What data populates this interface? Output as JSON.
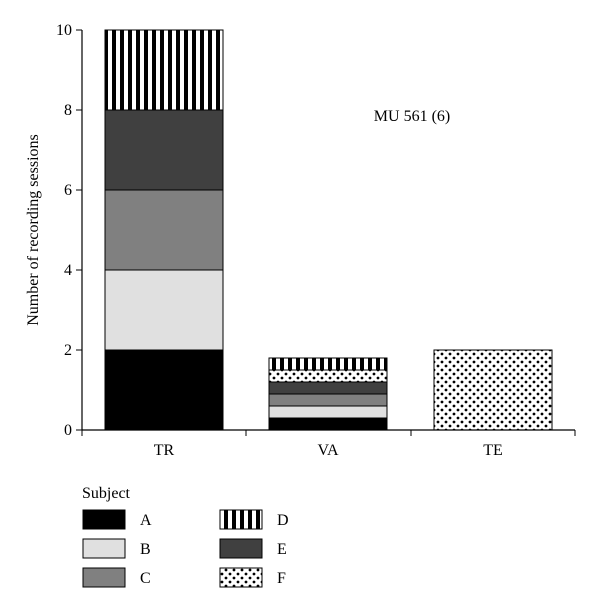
{
  "chart_data": {
    "type": "bar",
    "stacked": true,
    "title": "",
    "annotation": "MU 561 (6)",
    "xlabel": "",
    "ylabel": "Number of recording sessions",
    "ylim": [
      0,
      10
    ],
    "yticks": [
      0,
      2,
      4,
      6,
      8,
      10
    ],
    "categories": [
      "TR",
      "VA",
      "TE"
    ],
    "series": [
      {
        "name": "A",
        "fill": "solid",
        "color": "#000000",
        "values": [
          2,
          0.3,
          0
        ]
      },
      {
        "name": "B",
        "fill": "solid",
        "color": "#e0e0e0",
        "values": [
          2,
          0.3,
          0
        ]
      },
      {
        "name": "C",
        "fill": "solid",
        "color": "#808080",
        "values": [
          2,
          0.3,
          0
        ]
      },
      {
        "name": "E",
        "fill": "solid",
        "color": "#404040",
        "values": [
          2,
          0.3,
          0
        ]
      },
      {
        "name": "F",
        "fill": "dots",
        "color": "#000000",
        "values": [
          0,
          0.3,
          2
        ]
      },
      {
        "name": "D",
        "fill": "vstripes",
        "color": "#000000",
        "values": [
          2,
          0.3,
          0
        ]
      }
    ],
    "legend": {
      "title": "Subject",
      "placement": "bottom-left",
      "items": [
        "A",
        "B",
        "C",
        "D",
        "E",
        "F"
      ]
    }
  }
}
